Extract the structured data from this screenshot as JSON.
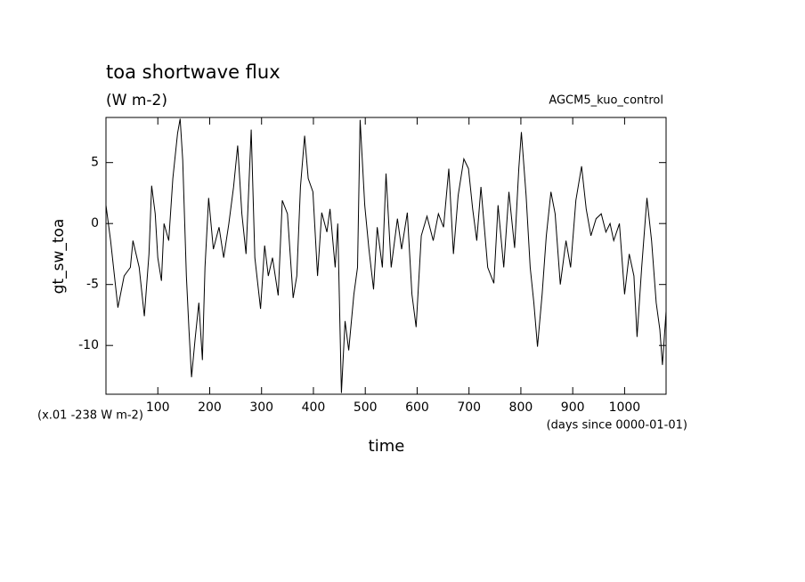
{
  "chart_data": {
    "type": "line",
    "title": "toa shortwave flux",
    "subtitle": "(W m-2)",
    "annotation": "AGCM5_kuo_control",
    "scale_note": "(x.01 -238 W m-2)",
    "x_unit_note": "(days since 0000-01-01)",
    "xlabel": "time",
    "ylabel": "gt_sw_toa",
    "xlim": [
      0,
      1080
    ],
    "ylim": [
      -14,
      8.7
    ],
    "xticks": [
      100,
      200,
      300,
      400,
      500,
      600,
      700,
      800,
      900,
      1000
    ],
    "yticks": [
      5,
      0,
      -5,
      -10
    ],
    "color": "#000000",
    "x": [
      0,
      9,
      23,
      35,
      47,
      52,
      64,
      74,
      83,
      88,
      95,
      100,
      107,
      112,
      121,
      129,
      138,
      143,
      148,
      155,
      160,
      165,
      172,
      179,
      186,
      191,
      198,
      207,
      218,
      227,
      237,
      246,
      254,
      262,
      270,
      280,
      287,
      298,
      306,
      313,
      321,
      332,
      340,
      350,
      361,
      368,
      375,
      383,
      390,
      399,
      408,
      416,
      426,
      432,
      442,
      447,
      454,
      461,
      468,
      478,
      485,
      490,
      499,
      507,
      516,
      523,
      533,
      540,
      550,
      562,
      570,
      581,
      590,
      598,
      608,
      619,
      631,
      641,
      651,
      661,
      670,
      679,
      690,
      699,
      707,
      715,
      723,
      736,
      748,
      756,
      767,
      777,
      788,
      796,
      801,
      810,
      818,
      825,
      832,
      841,
      849,
      858,
      866,
      876,
      887,
      896,
      906,
      917,
      926,
      935,
      945,
      955,
      964,
      972,
      979,
      990,
      1000,
      1009,
      1018,
      1024,
      1033,
      1043,
      1052,
      1061,
      1068,
      1073,
      1080
    ],
    "values": [
      1.5,
      -1.4,
      -6.9,
      -4.3,
      -3.6,
      -1.4,
      -3.6,
      -7.6,
      -2.5,
      3.1,
      0.8,
      -2.8,
      -4.7,
      0,
      -1.4,
      3.7,
      7.4,
      8.6,
      5.2,
      -4.3,
      -8.7,
      -12.6,
      -9.4,
      -6.5,
      -11.2,
      -3.6,
      2.1,
      -2.1,
      -0.3,
      -2.8,
      0,
      3,
      6.4,
      0.8,
      -2.5,
      7.7,
      -2.8,
      -7,
      -1.8,
      -4.3,
      -2.8,
      -5.9,
      1.9,
      0.8,
      -6.1,
      -4.3,
      3,
      7.2,
      3.7,
      2.6,
      -4.3,
      0.9,
      -0.7,
      1.2,
      -3.6,
      0,
      -13.9,
      -8,
      -10.4,
      -5.8,
      -3.6,
      8.5,
      1.5,
      -2.1,
      -5.4,
      -0.3,
      -3.6,
      4.1,
      -3.6,
      0.4,
      -2.1,
      0.9,
      -5.8,
      -8.5,
      -1,
      0.6,
      -1.4,
      0.8,
      -0.3,
      4.5,
      -2.5,
      2.3,
      5.3,
      4.5,
      1.2,
      -1.4,
      3,
      -3.6,
      -4.9,
      1.5,
      -3.6,
      2.6,
      -2,
      4.5,
      7.5,
      2.3,
      -3.6,
      -6.5,
      -10.1,
      -5.8,
      -1,
      2.6,
      0.8,
      -5,
      -1.4,
      -3.6,
      1.9,
      4.7,
      1.2,
      -1,
      0.4,
      0.8,
      -0.7,
      0,
      -1.4,
      0,
      -5.8,
      -2.5,
      -4.3,
      -9.3,
      -3.6,
      2.1,
      -1.4,
      -6.5,
      -8.7,
      -11.6,
      -7.2
    ]
  }
}
